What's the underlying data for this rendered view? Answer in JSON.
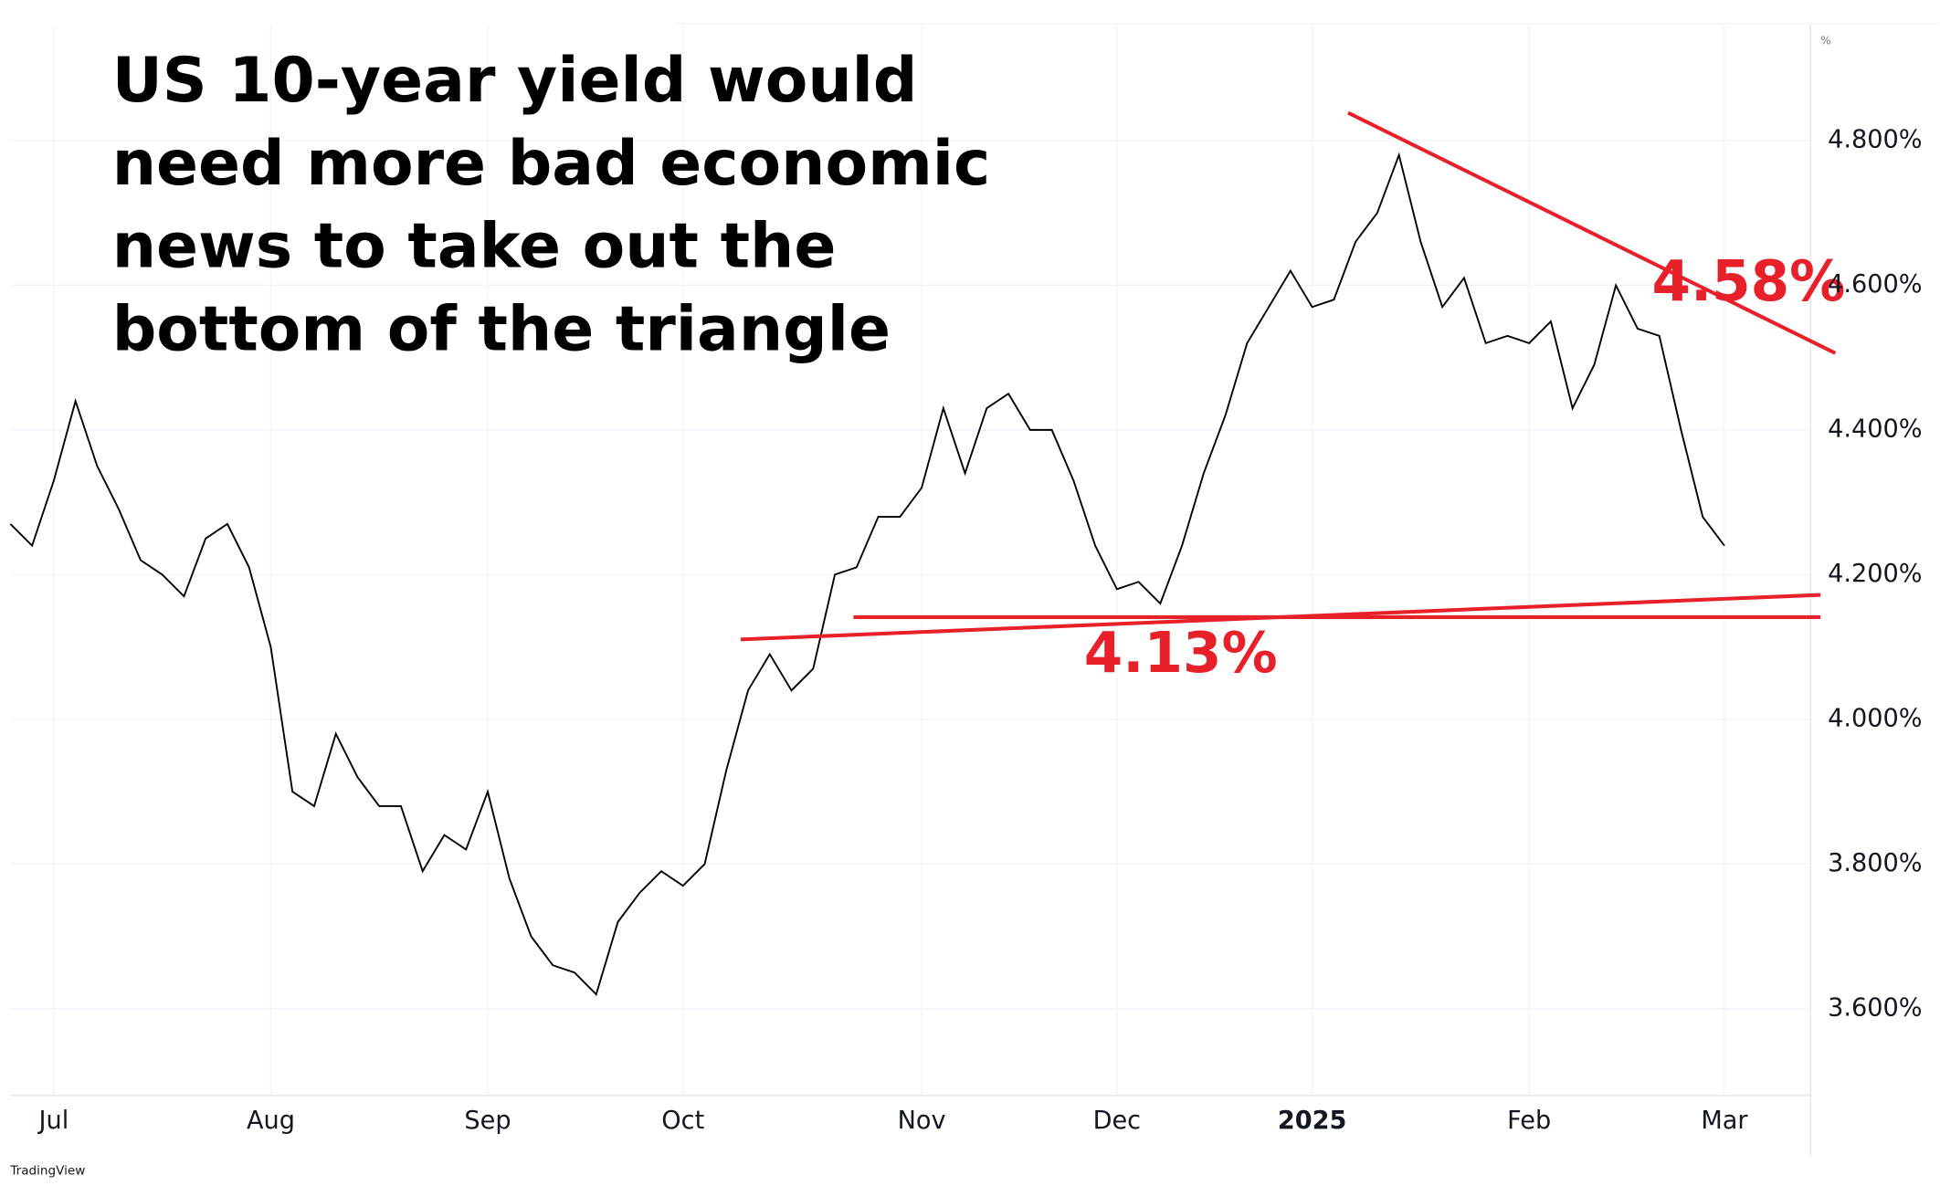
{
  "chart_data": {
    "type": "line",
    "title_lines": [
      "US 10-year yield would",
      "need more bad economic",
      "news to take out the",
      "bottom of the triangle"
    ],
    "categories": [
      null,
      null,
      "Jul",
      null,
      null,
      null,
      null,
      null,
      null,
      null,
      null,
      null,
      "Aug",
      null,
      null,
      null,
      null,
      null,
      null,
      null,
      null,
      null,
      "Sep",
      null,
      null,
      null,
      null,
      null,
      null,
      null,
      null,
      "Oct",
      null,
      null,
      null,
      null,
      null,
      null,
      null,
      null,
      null,
      null,
      "Nov",
      null,
      null,
      null,
      null,
      null,
      null,
      null,
      null,
      "Dec",
      null,
      null,
      null,
      null,
      null,
      null,
      null,
      null,
      "2025",
      null,
      null,
      null,
      null,
      null,
      null,
      null,
      null,
      null,
      "Feb",
      null,
      null,
      null,
      null,
      null,
      null,
      null,
      null,
      "Mar"
    ],
    "values": [
      4.27,
      4.24,
      4.33,
      4.44,
      4.35,
      4.29,
      4.22,
      4.2,
      4.17,
      4.25,
      4.27,
      4.21,
      4.1,
      3.9,
      3.88,
      3.98,
      3.92,
      3.88,
      3.88,
      3.79,
      3.84,
      3.82,
      3.9,
      3.78,
      3.7,
      3.66,
      3.65,
      3.62,
      3.72,
      3.76,
      3.79,
      3.77,
      3.8,
      3.93,
      4.04,
      4.09,
      4.04,
      4.07,
      4.2,
      4.21,
      4.28,
      4.28,
      4.32,
      4.43,
      4.34,
      4.43,
      4.45,
      4.4,
      4.4,
      4.33,
      4.24,
      4.18,
      4.19,
      4.16,
      4.24,
      4.34,
      4.42,
      4.52,
      4.57,
      4.62,
      4.57,
      4.58,
      4.66,
      4.7,
      4.78,
      4.66,
      4.57,
      4.61,
      4.52,
      4.53,
      4.52,
      4.55,
      4.43,
      4.49,
      4.6,
      4.54,
      4.53,
      4.4,
      4.28,
      4.24
    ],
    "color": "#000000",
    "ylim": [
      3.48,
      4.96
    ],
    "yticks": [
      {
        "value": 3.6,
        "label": "3.600%"
      },
      {
        "value": 3.8,
        "label": "3.800%"
      },
      {
        "value": 4.0,
        "label": "4.000%"
      },
      {
        "value": 4.2,
        "label": "4.200%"
      },
      {
        "value": 4.4,
        "label": "4.400%"
      },
      {
        "value": 4.6,
        "label": "4.600%"
      },
      {
        "value": 4.8,
        "label": "4.800%"
      }
    ],
    "grid": true,
    "annotations": [
      "4.58%",
      "4.13%"
    ],
    "unit_label": "%",
    "watermark": "TradingView"
  }
}
